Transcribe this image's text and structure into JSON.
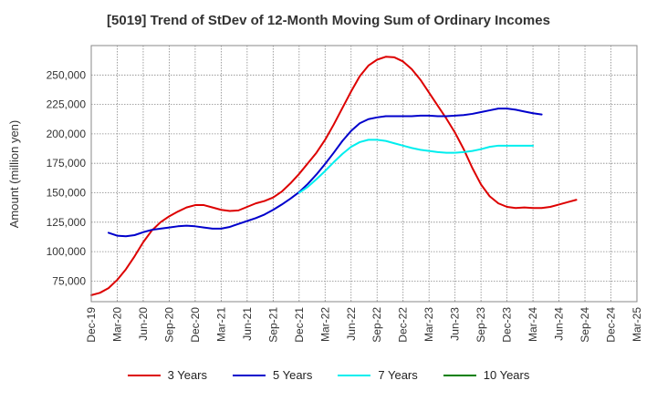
{
  "chart_data": {
    "type": "line",
    "title": "[5019]  Trend of StDev of 12-Month Moving Sum of Ordinary Incomes",
    "xlabel": "",
    "ylabel": "Amount (million yen)",
    "ylim": [
      57500,
      275000
    ],
    "yticks": [
      75000,
      100000,
      125000,
      150000,
      175000,
      200000,
      225000,
      250000
    ],
    "ytick_labels": [
      "75,000",
      "100,000",
      "125,000",
      "150,000",
      "175,000",
      "200,000",
      "225,000",
      "250,000"
    ],
    "xtick_labels": [
      "Dec-19",
      "Mar-20",
      "Jun-20",
      "Sep-20",
      "Dec-20",
      "Mar-21",
      "Jun-21",
      "Sep-21",
      "Dec-21",
      "Mar-22",
      "Jun-22",
      "Sep-22",
      "Dec-22",
      "Mar-23",
      "Jun-23",
      "Sep-23",
      "Dec-23",
      "Mar-24",
      "Jun-24",
      "Sep-24",
      "Dec-24",
      "Mar-25"
    ],
    "grid": true,
    "legend_position": "bottom",
    "series": [
      {
        "name": "3 Years",
        "color": "#dd0000",
        "start_index": 0,
        "values": [
          63000,
          65000,
          69000,
          76000,
          85000,
          96000,
          108000,
          118000,
          125000,
          130000,
          134000,
          137500,
          139500,
          139500,
          137500,
          135500,
          134500,
          135000,
          138000,
          141000,
          143000,
          146000,
          151000,
          158000,
          166000,
          175000,
          184000,
          195000,
          208000,
          222000,
          236000,
          249000,
          258000,
          263000,
          265500,
          265000,
          261500,
          255000,
          246000,
          235000,
          224000,
          213000,
          201000,
          187000,
          171000,
          157000,
          147000,
          141000,
          138000,
          137000,
          137500,
          137000,
          137000,
          138000,
          140000,
          142000,
          144000
        ]
      },
      {
        "name": "5 Years",
        "color": "#0000cc",
        "start_index": 2,
        "values": [
          116000,
          113500,
          113000,
          114000,
          116500,
          118500,
          119500,
          120500,
          121500,
          122000,
          121500,
          120500,
          119500,
          119500,
          121000,
          123500,
          126000,
          128500,
          131500,
          135500,
          140000,
          145000,
          150500,
          157500,
          165500,
          174500,
          184000,
          194000,
          202500,
          209000,
          212500,
          214000,
          215000,
          215000,
          215000,
          215000,
          215500,
          215500,
          215000,
          215000,
          215500,
          216000,
          217000,
          218500,
          220000,
          221500,
          221500,
          220500,
          219000,
          217500,
          216500
        ]
      },
      {
        "name": "7 Years",
        "color": "#00eeee",
        "start_index": 24,
        "values": [
          150000,
          155000,
          161500,
          168500,
          176000,
          183000,
          189000,
          193000,
          195000,
          195000,
          194000,
          192000,
          190000,
          188000,
          186500,
          185500,
          184500,
          184000,
          184000,
          184500,
          185500,
          187000,
          189000,
          190000,
          190000,
          190000,
          190000,
          190000
        ]
      },
      {
        "name": "10 Years",
        "color": "#008000",
        "start_index": 0,
        "values": []
      }
    ]
  }
}
